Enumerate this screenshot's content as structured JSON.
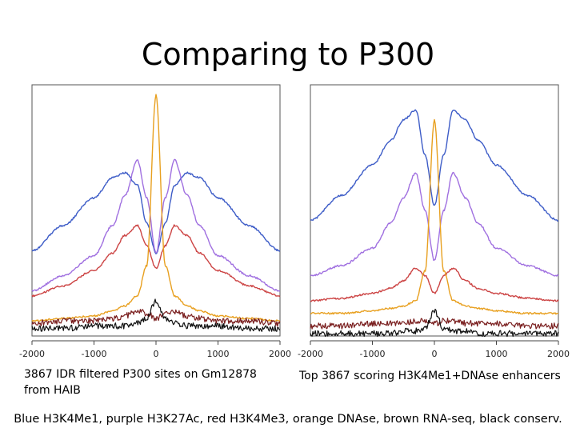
{
  "slide": {
    "title": "Comparing to P300",
    "caption_left": "3867 IDR filtered P300 sites on Gm12878 from HAIB",
    "caption_right": "Top 3867 scoring H3K4Me1+DNAse enhancers",
    "legend_text": "Blue H3K4Me1, purple H3K27Ac, red H3K4Me3, orange DNAse, brown RNA-seq, black conserv."
  },
  "chart_data": [
    {
      "type": "line",
      "title": "",
      "xlabel": "",
      "ylabel": "",
      "xlim": [
        -2000,
        2000
      ],
      "x_ticks": [
        "-2000",
        "-1000",
        "0",
        "1000",
        "2000"
      ],
      "ylim": [
        0,
        1
      ],
      "grid": false,
      "x": [
        -2000,
        -1500,
        -1000,
        -700,
        -500,
        -300,
        -150,
        0,
        150,
        300,
        500,
        700,
        1000,
        1500,
        2000
      ],
      "series": [
        {
          "name": "H3K4Me1",
          "color": "#3d5cc7",
          "values": [
            0.34,
            0.44,
            0.55,
            0.63,
            0.65,
            0.6,
            0.45,
            0.33,
            0.45,
            0.6,
            0.65,
            0.63,
            0.55,
            0.44,
            0.34
          ]
        },
        {
          "name": "H3K27Ac",
          "color": "#a070e0",
          "values": [
            0.18,
            0.24,
            0.32,
            0.44,
            0.56,
            0.7,
            0.55,
            0.33,
            0.55,
            0.7,
            0.56,
            0.44,
            0.32,
            0.24,
            0.18
          ]
        },
        {
          "name": "H3K4Me3",
          "color": "#cc4444",
          "values": [
            0.16,
            0.2,
            0.26,
            0.33,
            0.4,
            0.44,
            0.36,
            0.27,
            0.36,
            0.44,
            0.4,
            0.33,
            0.26,
            0.2,
            0.16
          ]
        },
        {
          "name": "DNAse",
          "color": "#e8a020",
          "values": [
            0.06,
            0.07,
            0.08,
            0.1,
            0.12,
            0.16,
            0.28,
            0.96,
            0.28,
            0.16,
            0.12,
            0.1,
            0.08,
            0.07,
            0.06
          ]
        },
        {
          "name": "RNA-seq",
          "color": "#7a1f1f",
          "values": [
            0.05,
            0.06,
            0.06,
            0.07,
            0.08,
            0.1,
            0.09,
            0.07,
            0.09,
            0.1,
            0.08,
            0.07,
            0.06,
            0.06,
            0.05
          ]
        },
        {
          "name": "conserv.",
          "color": "#111111",
          "values": [
            0.03,
            0.03,
            0.04,
            0.04,
            0.04,
            0.05,
            0.07,
            0.14,
            0.07,
            0.05,
            0.04,
            0.04,
            0.04,
            0.03,
            0.03
          ]
        }
      ]
    },
    {
      "type": "line",
      "title": "",
      "xlabel": "",
      "ylabel": "",
      "xlim": [
        -2000,
        2000
      ],
      "x_ticks": [
        "-2000",
        "-1000",
        "0",
        "1000",
        "2000"
      ],
      "ylim": [
        0,
        1
      ],
      "grid": false,
      "x": [
        -2000,
        -1500,
        -1000,
        -700,
        -500,
        -300,
        -150,
        0,
        150,
        300,
        500,
        700,
        1000,
        1500,
        2000
      ],
      "series": [
        {
          "name": "H3K4Me1",
          "color": "#3d5cc7",
          "values": [
            0.46,
            0.56,
            0.68,
            0.78,
            0.86,
            0.9,
            0.72,
            0.52,
            0.72,
            0.9,
            0.86,
            0.78,
            0.68,
            0.56,
            0.46
          ]
        },
        {
          "name": "H3K27Ac",
          "color": "#a070e0",
          "values": [
            0.24,
            0.28,
            0.35,
            0.45,
            0.55,
            0.65,
            0.5,
            0.3,
            0.5,
            0.65,
            0.55,
            0.45,
            0.35,
            0.28,
            0.24
          ]
        },
        {
          "name": "H3K4Me3",
          "color": "#cc4444",
          "values": [
            0.14,
            0.15,
            0.17,
            0.19,
            0.22,
            0.27,
            0.24,
            0.17,
            0.24,
            0.27,
            0.22,
            0.19,
            0.17,
            0.15,
            0.14
          ]
        },
        {
          "name": "DNAse",
          "color": "#e8a020",
          "values": [
            0.09,
            0.09,
            0.1,
            0.11,
            0.12,
            0.14,
            0.26,
            0.86,
            0.26,
            0.14,
            0.12,
            0.11,
            0.1,
            0.09,
            0.09
          ]
        },
        {
          "name": "RNA-seq",
          "color": "#7a1f1f",
          "values": [
            0.04,
            0.04,
            0.05,
            0.05,
            0.05,
            0.06,
            0.06,
            0.05,
            0.06,
            0.06,
            0.05,
            0.05,
            0.05,
            0.04,
            0.04
          ]
        },
        {
          "name": "conserv.",
          "color": "#111111",
          "values": [
            0.01,
            0.01,
            0.01,
            0.01,
            0.02,
            0.02,
            0.03,
            0.1,
            0.03,
            0.02,
            0.02,
            0.01,
            0.01,
            0.01,
            0.01
          ]
        }
      ]
    }
  ]
}
